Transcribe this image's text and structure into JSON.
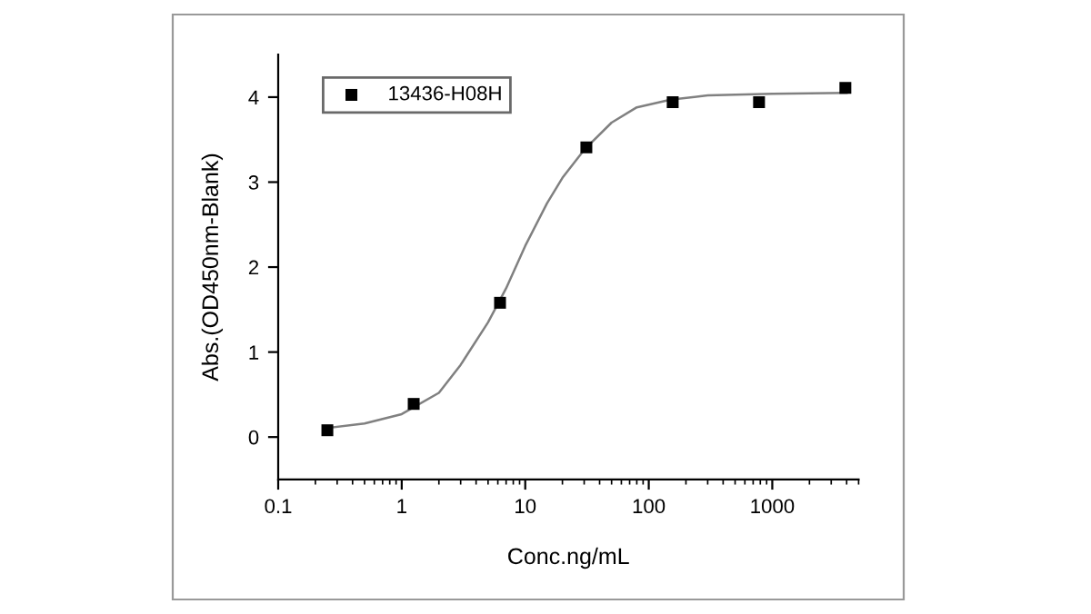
{
  "chart_data": {
    "type": "scatter",
    "xlabel": "Conc.ng/mL",
    "ylabel": "Abs.(OD450nm-Blank)",
    "log": "x",
    "xlim": [
      0.1,
      5000
    ],
    "xticks": [
      0.1,
      1,
      10,
      100,
      1000
    ],
    "ylim": [
      -0.5,
      4.5
    ],
    "yticks": [
      0,
      1,
      2,
      3,
      4
    ],
    "grid": false,
    "legend": "top left",
    "series": [
      {
        "name": "13436-H08H",
        "marker": "square",
        "color": "#000000",
        "x": [
          0.25,
          1.25,
          6.25,
          31.25,
          156.25,
          781.25,
          3906.25
        ],
        "values": [
          0.08,
          0.39,
          1.58,
          3.41,
          3.94,
          3.94,
          4.11
        ]
      },
      {
        "type": "line",
        "marker": "none",
        "color": "#808080",
        "x": [
          0.26,
          0.5,
          1,
          2,
          3,
          5,
          7,
          10,
          15,
          20,
          30,
          50,
          80,
          150,
          300,
          1000,
          4000
        ],
        "values": [
          0.11,
          0.16,
          0.27,
          0.52,
          0.85,
          1.35,
          1.75,
          2.25,
          2.75,
          3.05,
          3.38,
          3.7,
          3.88,
          3.97,
          4.02,
          4.04,
          4.05
        ]
      }
    ]
  }
}
